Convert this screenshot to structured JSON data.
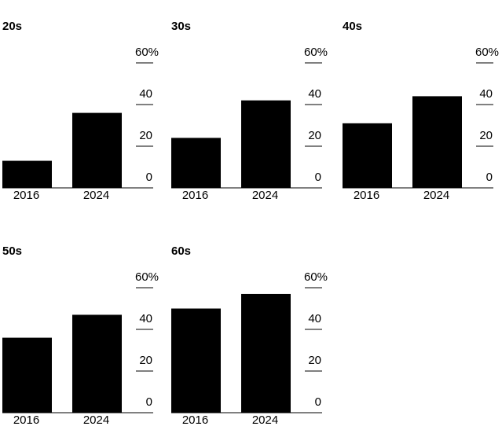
{
  "chart_data": [
    {
      "type": "bar",
      "title": "20s",
      "categories": [
        "2016",
        "2024"
      ],
      "values": [
        13,
        36
      ],
      "ylim": [
        0,
        60
      ],
      "yticks": [
        "0",
        "20",
        "40",
        "60%"
      ],
      "bar_color": "#000000"
    },
    {
      "type": "bar",
      "title": "30s",
      "categories": [
        "2016",
        "2024"
      ],
      "values": [
        24,
        42
      ],
      "ylim": [
        0,
        60
      ],
      "yticks": [
        "0",
        "20",
        "40",
        "60%"
      ],
      "bar_color": "#000000"
    },
    {
      "type": "bar",
      "title": "40s",
      "categories": [
        "2016",
        "2024"
      ],
      "values": [
        31,
        44
      ],
      "ylim": [
        0,
        60
      ],
      "yticks": [
        "0",
        "20",
        "40",
        "60%"
      ],
      "bar_color": "#000000"
    },
    {
      "type": "bar",
      "title": "50s",
      "categories": [
        "2016",
        "2024"
      ],
      "values": [
        36,
        47
      ],
      "ylim": [
        0,
        60
      ],
      "yticks": [
        "0",
        "20",
        "40",
        "60%"
      ],
      "bar_color": "#000000"
    },
    {
      "type": "bar",
      "title": "60s",
      "categories": [
        "2016",
        "2024"
      ],
      "values": [
        50,
        57
      ],
      "ylim": [
        0,
        60
      ],
      "yticks": [
        "0",
        "20",
        "40",
        "60%"
      ],
      "bar_color": "#000000"
    }
  ]
}
